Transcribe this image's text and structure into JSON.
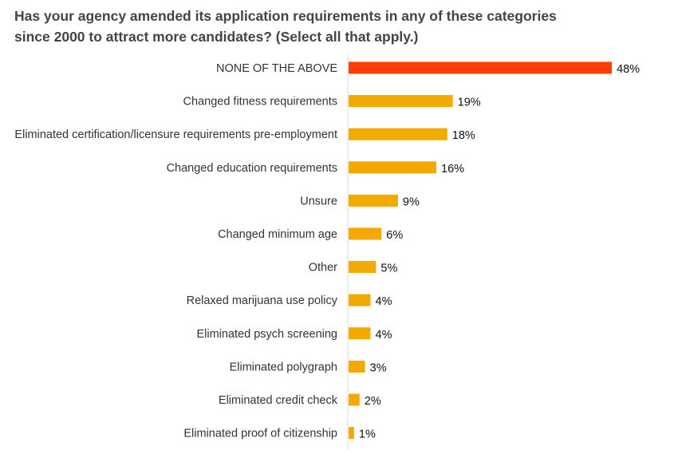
{
  "chart_data": {
    "type": "bar",
    "orientation": "horizontal",
    "title": "Has your agency amended its application requirements in any of these categories since 2000 to attract more candidates? (Select all that apply.)",
    "xlabel": "",
    "ylabel": "",
    "xlim": [
      0,
      48
    ],
    "grid": false,
    "legend": "none",
    "value_suffix": "%",
    "categories": [
      "NONE OF THE ABOVE",
      "Changed fitness requirements",
      "Eliminated certification/licensure requirements pre-employment",
      "Changed education requirements",
      "Unsure",
      "Changed minimum age",
      "Other",
      "Relaxed marijuana use policy",
      "Eliminated psych screening",
      "Eliminated polygraph",
      "Eliminated credit check",
      "Eliminated proof of citizenship"
    ],
    "values": [
      48,
      19,
      18,
      16,
      9,
      6,
      5,
      4,
      4,
      3,
      2,
      1
    ],
    "highlight_index": 0,
    "colors": {
      "highlight": "#ff3d00",
      "bar": "#f2a900",
      "axis": "#dddddd"
    }
  }
}
